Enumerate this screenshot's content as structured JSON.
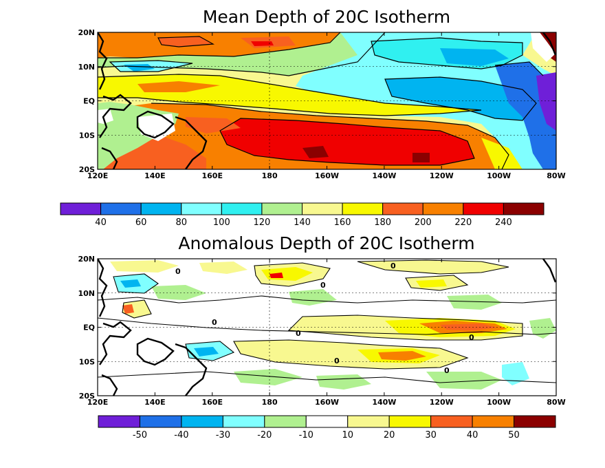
{
  "panels": [
    {
      "title": "Mean Depth of 20C Isotherm",
      "lon_labels": [
        "120E",
        "140E",
        "160E",
        "180",
        "160W",
        "140W",
        "120W",
        "100W",
        "80W"
      ],
      "lat_labels": [
        "20N",
        "10N",
        "EQ",
        "10S",
        "20S"
      ],
      "colorbar": {
        "colors": [
          "#6f1fd8",
          "#1f70e8",
          "#00b4f0",
          "#80ffff",
          "#30f0f0",
          "#b0f090",
          "#f8f890",
          "#f8f800",
          "#f86020",
          "#f88000",
          "#f00000",
          "#8b0000"
        ],
        "labels": [
          "40",
          "60",
          "80",
          "100",
          "120",
          "140",
          "160",
          "180",
          "200",
          "220",
          "240"
        ]
      }
    },
    {
      "title": "Anomalous Depth of 20C Isotherm",
      "lon_labels": [
        "120E",
        "140E",
        "160E",
        "180",
        "160W",
        "140W",
        "120W",
        "100W",
        "80W"
      ],
      "lat_labels": [
        "20N",
        "10N",
        "EQ",
        "10S",
        "20S"
      ],
      "colorbar": {
        "colors": [
          "#6f1fd8",
          "#1f70e8",
          "#00b4f0",
          "#80ffff",
          "#b0f090",
          "#ffffff",
          "#f8f890",
          "#f8f800",
          "#f86020",
          "#f88000",
          "#8b0000"
        ],
        "labels": [
          "-50",
          "-40",
          "-30",
          "-20",
          "-10",
          "10",
          "20",
          "30",
          "40",
          "50"
        ]
      },
      "contour_label": "0"
    }
  ],
  "chart_data": [
    {
      "type": "heatmap",
      "title": "Mean Depth of 20C Isotherm",
      "x_range": [
        "120E",
        "80W"
      ],
      "y_range": [
        "20S",
        "20N"
      ],
      "levels": [
        40,
        60,
        80,
        100,
        120,
        140,
        160,
        180,
        200,
        220,
        240
      ],
      "description_pattern": "deep (200-240) in west/south, shallow (40-80) in east"
    },
    {
      "type": "heatmap",
      "title": "Anomalous Depth of 20C Isotherm",
      "x_range": [
        "120E",
        "80W"
      ],
      "y_range": [
        "20S",
        "20N"
      ],
      "levels": [
        -50,
        -40,
        -30,
        -20,
        -10,
        10,
        20,
        30,
        40,
        50
      ]
    }
  ]
}
